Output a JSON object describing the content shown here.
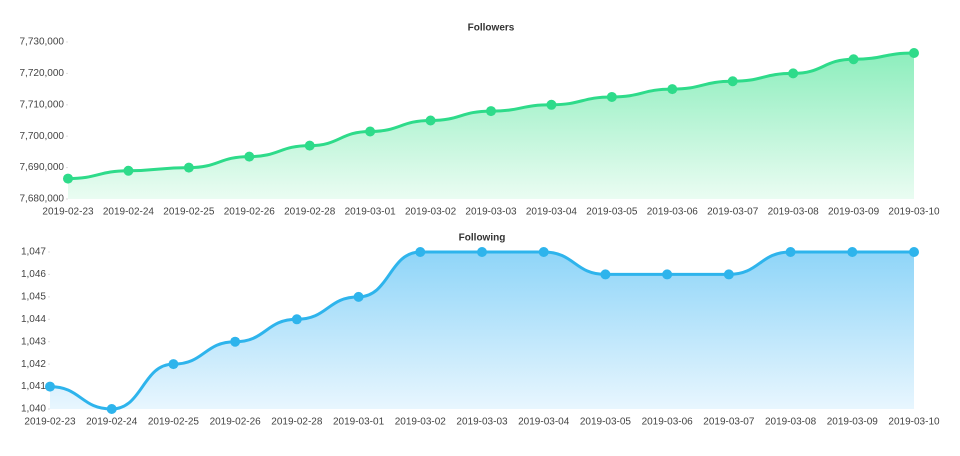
{
  "chart_data": [
    {
      "type": "line",
      "title": "Followers",
      "x": [
        "2019-02-23",
        "2019-02-24",
        "2019-02-25",
        "2019-02-26",
        "2019-02-28",
        "2019-03-01",
        "2019-03-02",
        "2019-03-03",
        "2019-03-04",
        "2019-03-05",
        "2019-03-06",
        "2019-03-07",
        "2019-03-08",
        "2019-03-09",
        "2019-03-10"
      ],
      "values": [
        7686500,
        7689000,
        7690000,
        7693500,
        7697000,
        7701500,
        7705000,
        7708000,
        7710000,
        7712500,
        7715000,
        7717500,
        7720000,
        7724500,
        7726500
      ],
      "color": "#2edb8a",
      "ylim": [
        7680000,
        7730000
      ],
      "yticks": [
        {
          "value": 7680000,
          "label": "7,680,000"
        },
        {
          "value": 7690000,
          "label": "7,690,000"
        },
        {
          "value": 7700000,
          "label": "7,700,000"
        },
        {
          "value": 7710000,
          "label": "7,710,000"
        },
        {
          "value": 7720000,
          "label": "7,720,000"
        },
        {
          "value": 7730000,
          "label": "7,730,000"
        }
      ]
    },
    {
      "type": "line",
      "title": "Following",
      "x": [
        "2019-02-23",
        "2019-02-24",
        "2019-02-25",
        "2019-02-26",
        "2019-02-28",
        "2019-03-01",
        "2019-03-02",
        "2019-03-03",
        "2019-03-04",
        "2019-03-05",
        "2019-03-06",
        "2019-03-07",
        "2019-03-08",
        "2019-03-09",
        "2019-03-10"
      ],
      "values": [
        1041,
        1040,
        1042,
        1043,
        1044,
        1045,
        1047,
        1047,
        1047,
        1046,
        1046,
        1046,
        1047,
        1047,
        1047
      ],
      "color": "#2eb4ec",
      "ylim": [
        1040,
        1047
      ],
      "yticks": [
        {
          "value": 1040,
          "label": "1,040"
        },
        {
          "value": 1041,
          "label": "1,041"
        },
        {
          "value": 1042,
          "label": "1,042"
        },
        {
          "value": 1043,
          "label": "1,043"
        },
        {
          "value": 1044,
          "label": "1,044"
        },
        {
          "value": 1045,
          "label": "1,045"
        },
        {
          "value": 1046,
          "label": "1,046"
        },
        {
          "value": 1047,
          "label": "1,047"
        }
      ]
    }
  ]
}
